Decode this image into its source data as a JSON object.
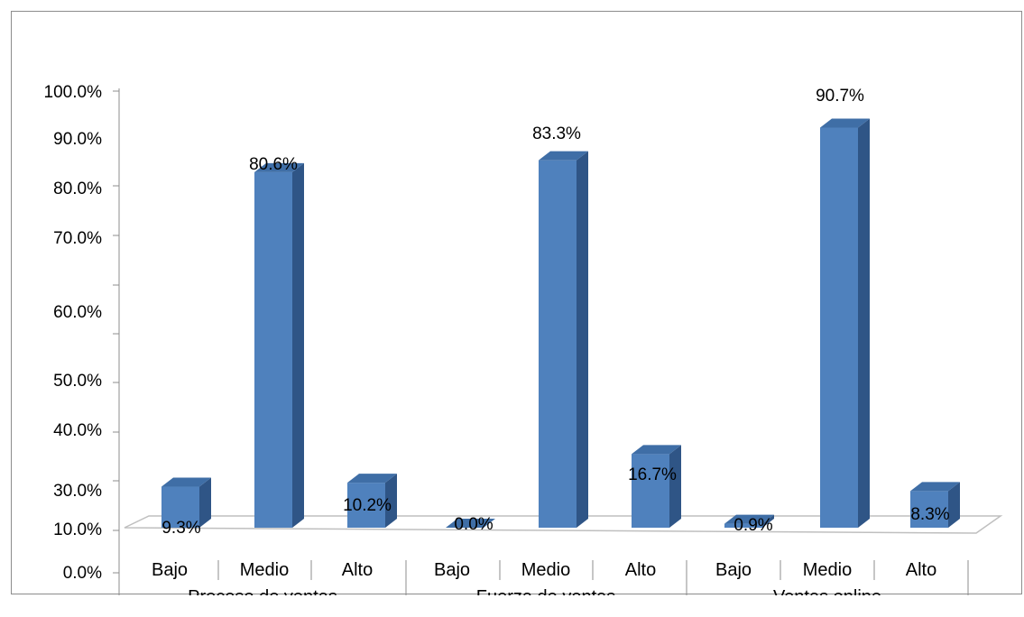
{
  "chart_data": {
    "type": "bar",
    "style": "3d-column",
    "y_tick_labels": [
      "0.0%",
      "10.0%",
      "30.0%",
      "40.0%",
      "50.0%",
      "60.0%",
      "70.0%",
      "80.0%",
      "90.0%",
      "100.0%"
    ],
    "groups": [
      "Proceso de ventas",
      "Fuerza de ventas",
      "Ventas online"
    ],
    "categories": [
      "Bajo",
      "Medio",
      "Alto"
    ],
    "series": [
      {
        "group": "Proceso de ventas",
        "values": [
          9.3,
          80.6,
          10.2
        ],
        "labels": [
          "9.3%",
          "80.6%",
          "10.2%"
        ]
      },
      {
        "group": "Fuerza de ventas",
        "values": [
          0.0,
          83.3,
          16.7
        ],
        "labels": [
          "0.0%",
          "83.3%",
          "16.7%"
        ]
      },
      {
        "group": "Ventas online",
        "values": [
          0.9,
          90.7,
          8.3
        ],
        "labels": [
          "0.9%",
          "90.7%",
          "8.3%"
        ]
      }
    ],
    "ylim": [
      0,
      100
    ],
    "bar_color": "#4f81bd",
    "bar_side_color": "#2f5586",
    "bar_top_color": "#3f6ea6",
    "grid": false,
    "legend": "none"
  }
}
